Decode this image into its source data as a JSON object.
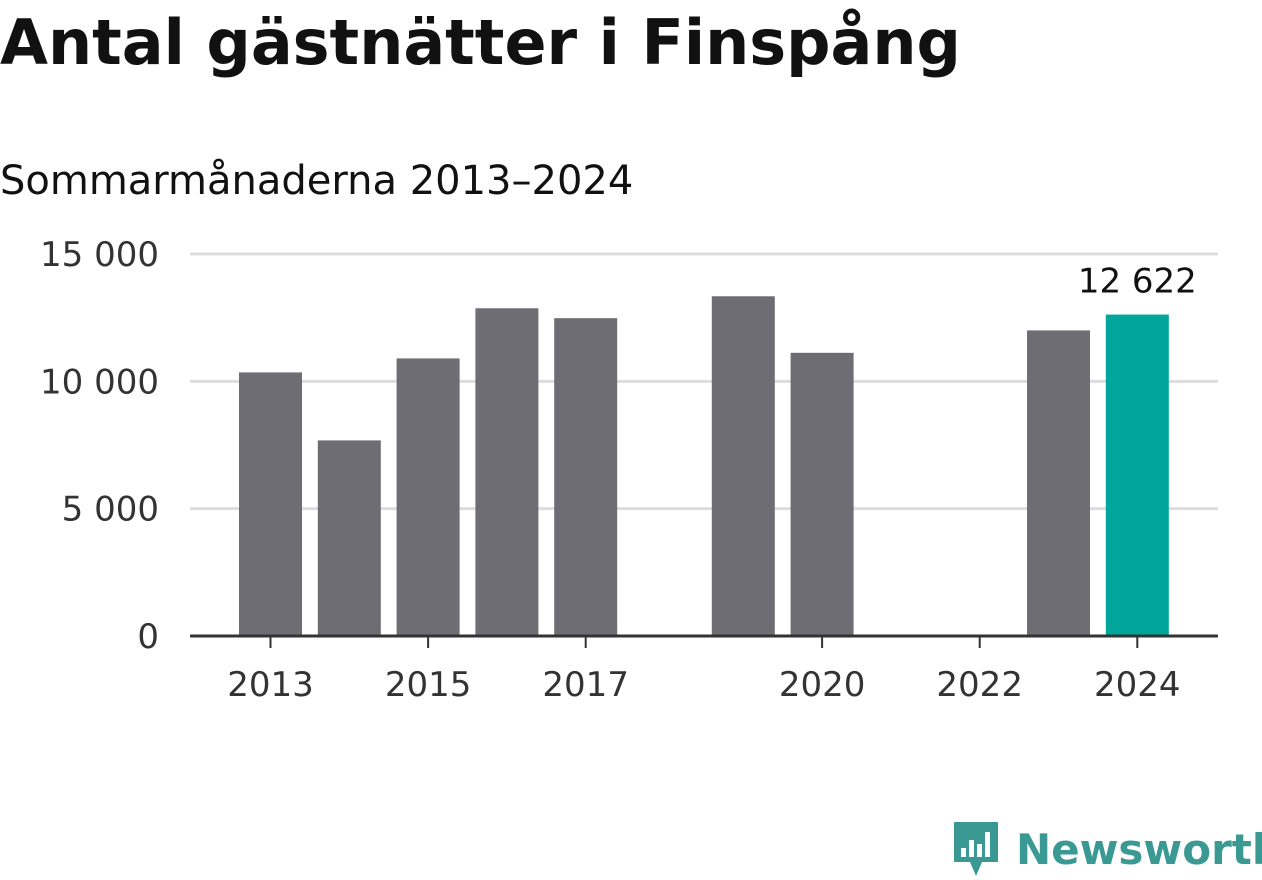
{
  "header": {
    "title": "Antal gästnätter i Finspång",
    "subtitle": "Sommarmånaderna 2013–2024"
  },
  "brand": {
    "name": "Newsworthy",
    "icon": "newsworthy-logo-icon",
    "color": "#3a9a93"
  },
  "colors": {
    "bar": "#6e6d74",
    "highlight": "#00a59b",
    "grid": "#dddddd",
    "axis": "#333333"
  },
  "chart_data": {
    "type": "bar",
    "title": "Antal gästnätter i Finspång",
    "subtitle": "Sommarmånaderna 2013–2024",
    "categories": [
      "2013",
      "2014",
      "2015",
      "2016",
      "2017",
      "2018",
      "2019",
      "2020",
      "2021",
      "2022",
      "2023",
      "2024"
    ],
    "values": [
      10350,
      7680,
      10900,
      12870,
      12480,
      null,
      13340,
      11120,
      null,
      null,
      12000,
      12622
    ],
    "highlight_index": 11,
    "data_labels": [
      {
        "index": 11,
        "text": "12 622"
      }
    ],
    "yticks": [
      {
        "value": 0,
        "label": "0"
      },
      {
        "value": 5000,
        "label": "5 000"
      },
      {
        "value": 10000,
        "label": "10 000"
      },
      {
        "value": 15000,
        "label": "15 000"
      }
    ],
    "xticks": [
      "2013",
      "2015",
      "2017",
      "2020",
      "2022",
      "2024"
    ],
    "ylim": [
      0,
      15000
    ],
    "grid": true,
    "legend": "none"
  }
}
